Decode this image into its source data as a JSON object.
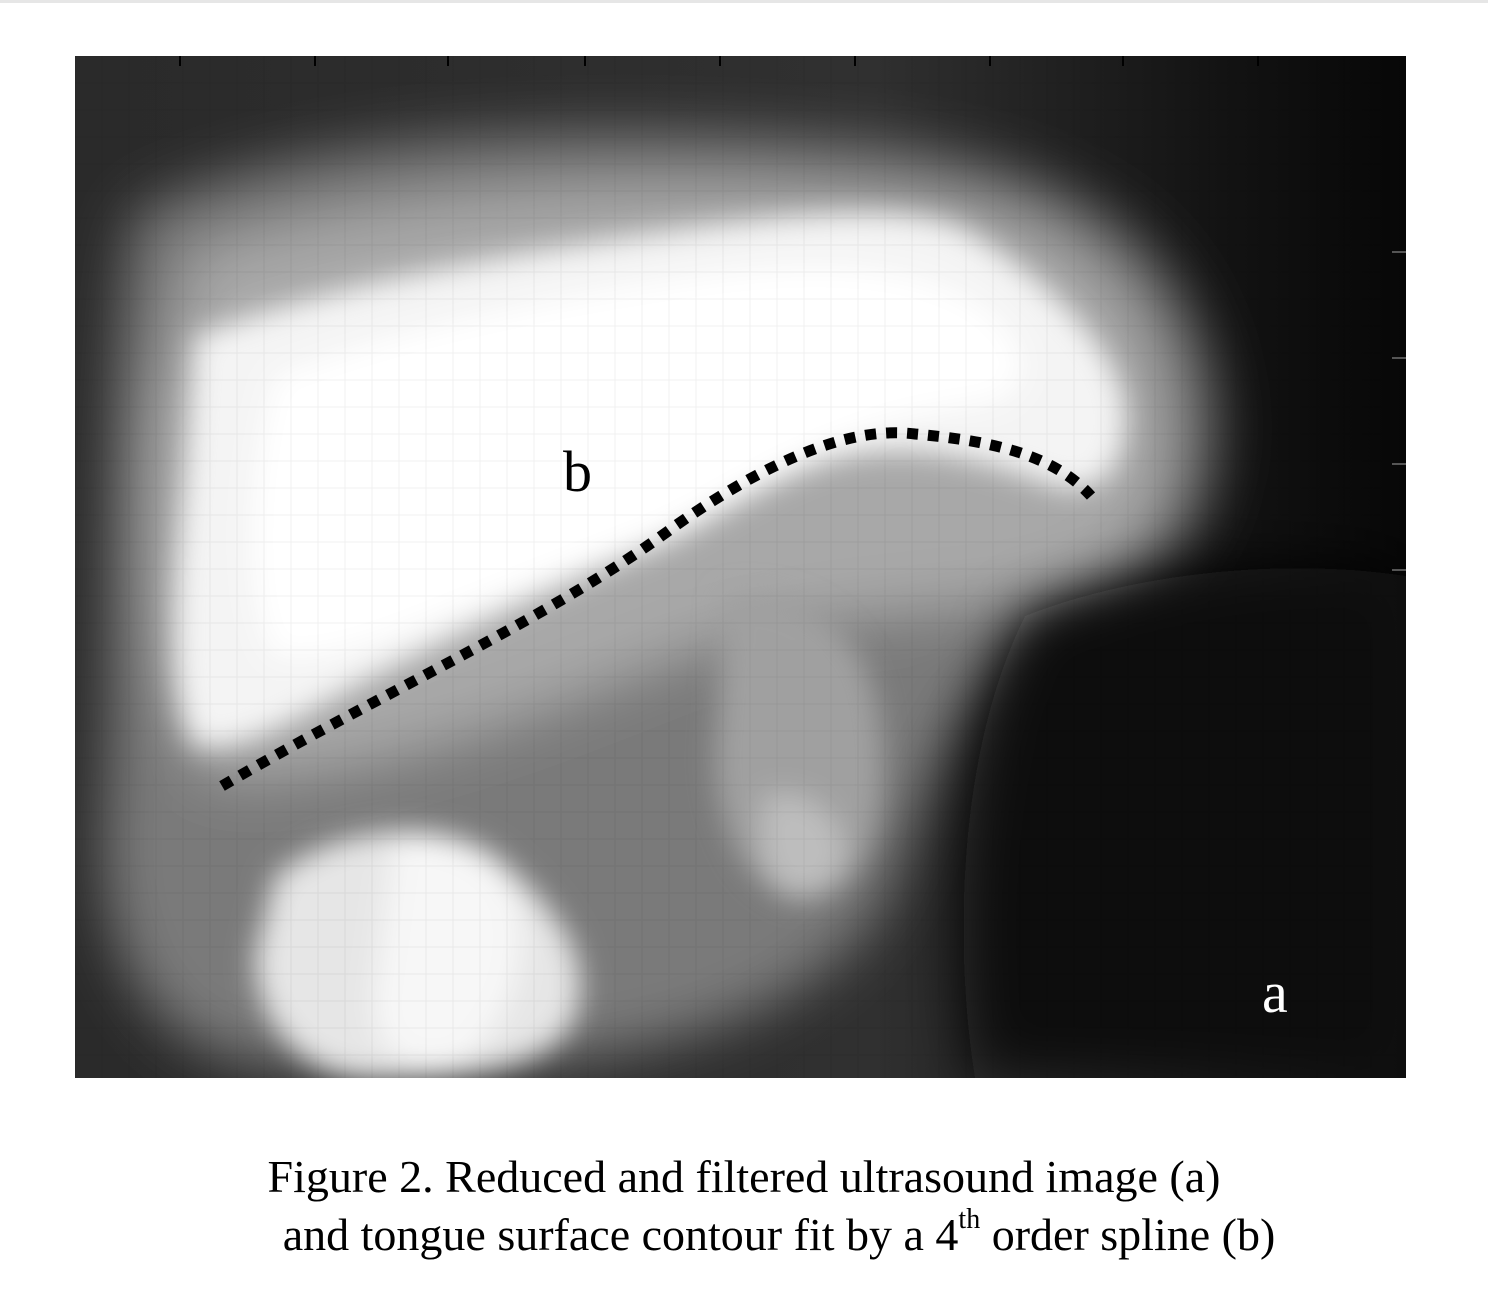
{
  "figure": {
    "label_a": "a",
    "label_b": "b",
    "contour_color": "#000000"
  },
  "caption": {
    "line1": "Figure 2. Reduced and filtered ultrasound image (a)",
    "line2_before": "and tongue surface contour fit by a 4",
    "line2_sup": "th",
    "line2_after": " order spline (b)"
  }
}
